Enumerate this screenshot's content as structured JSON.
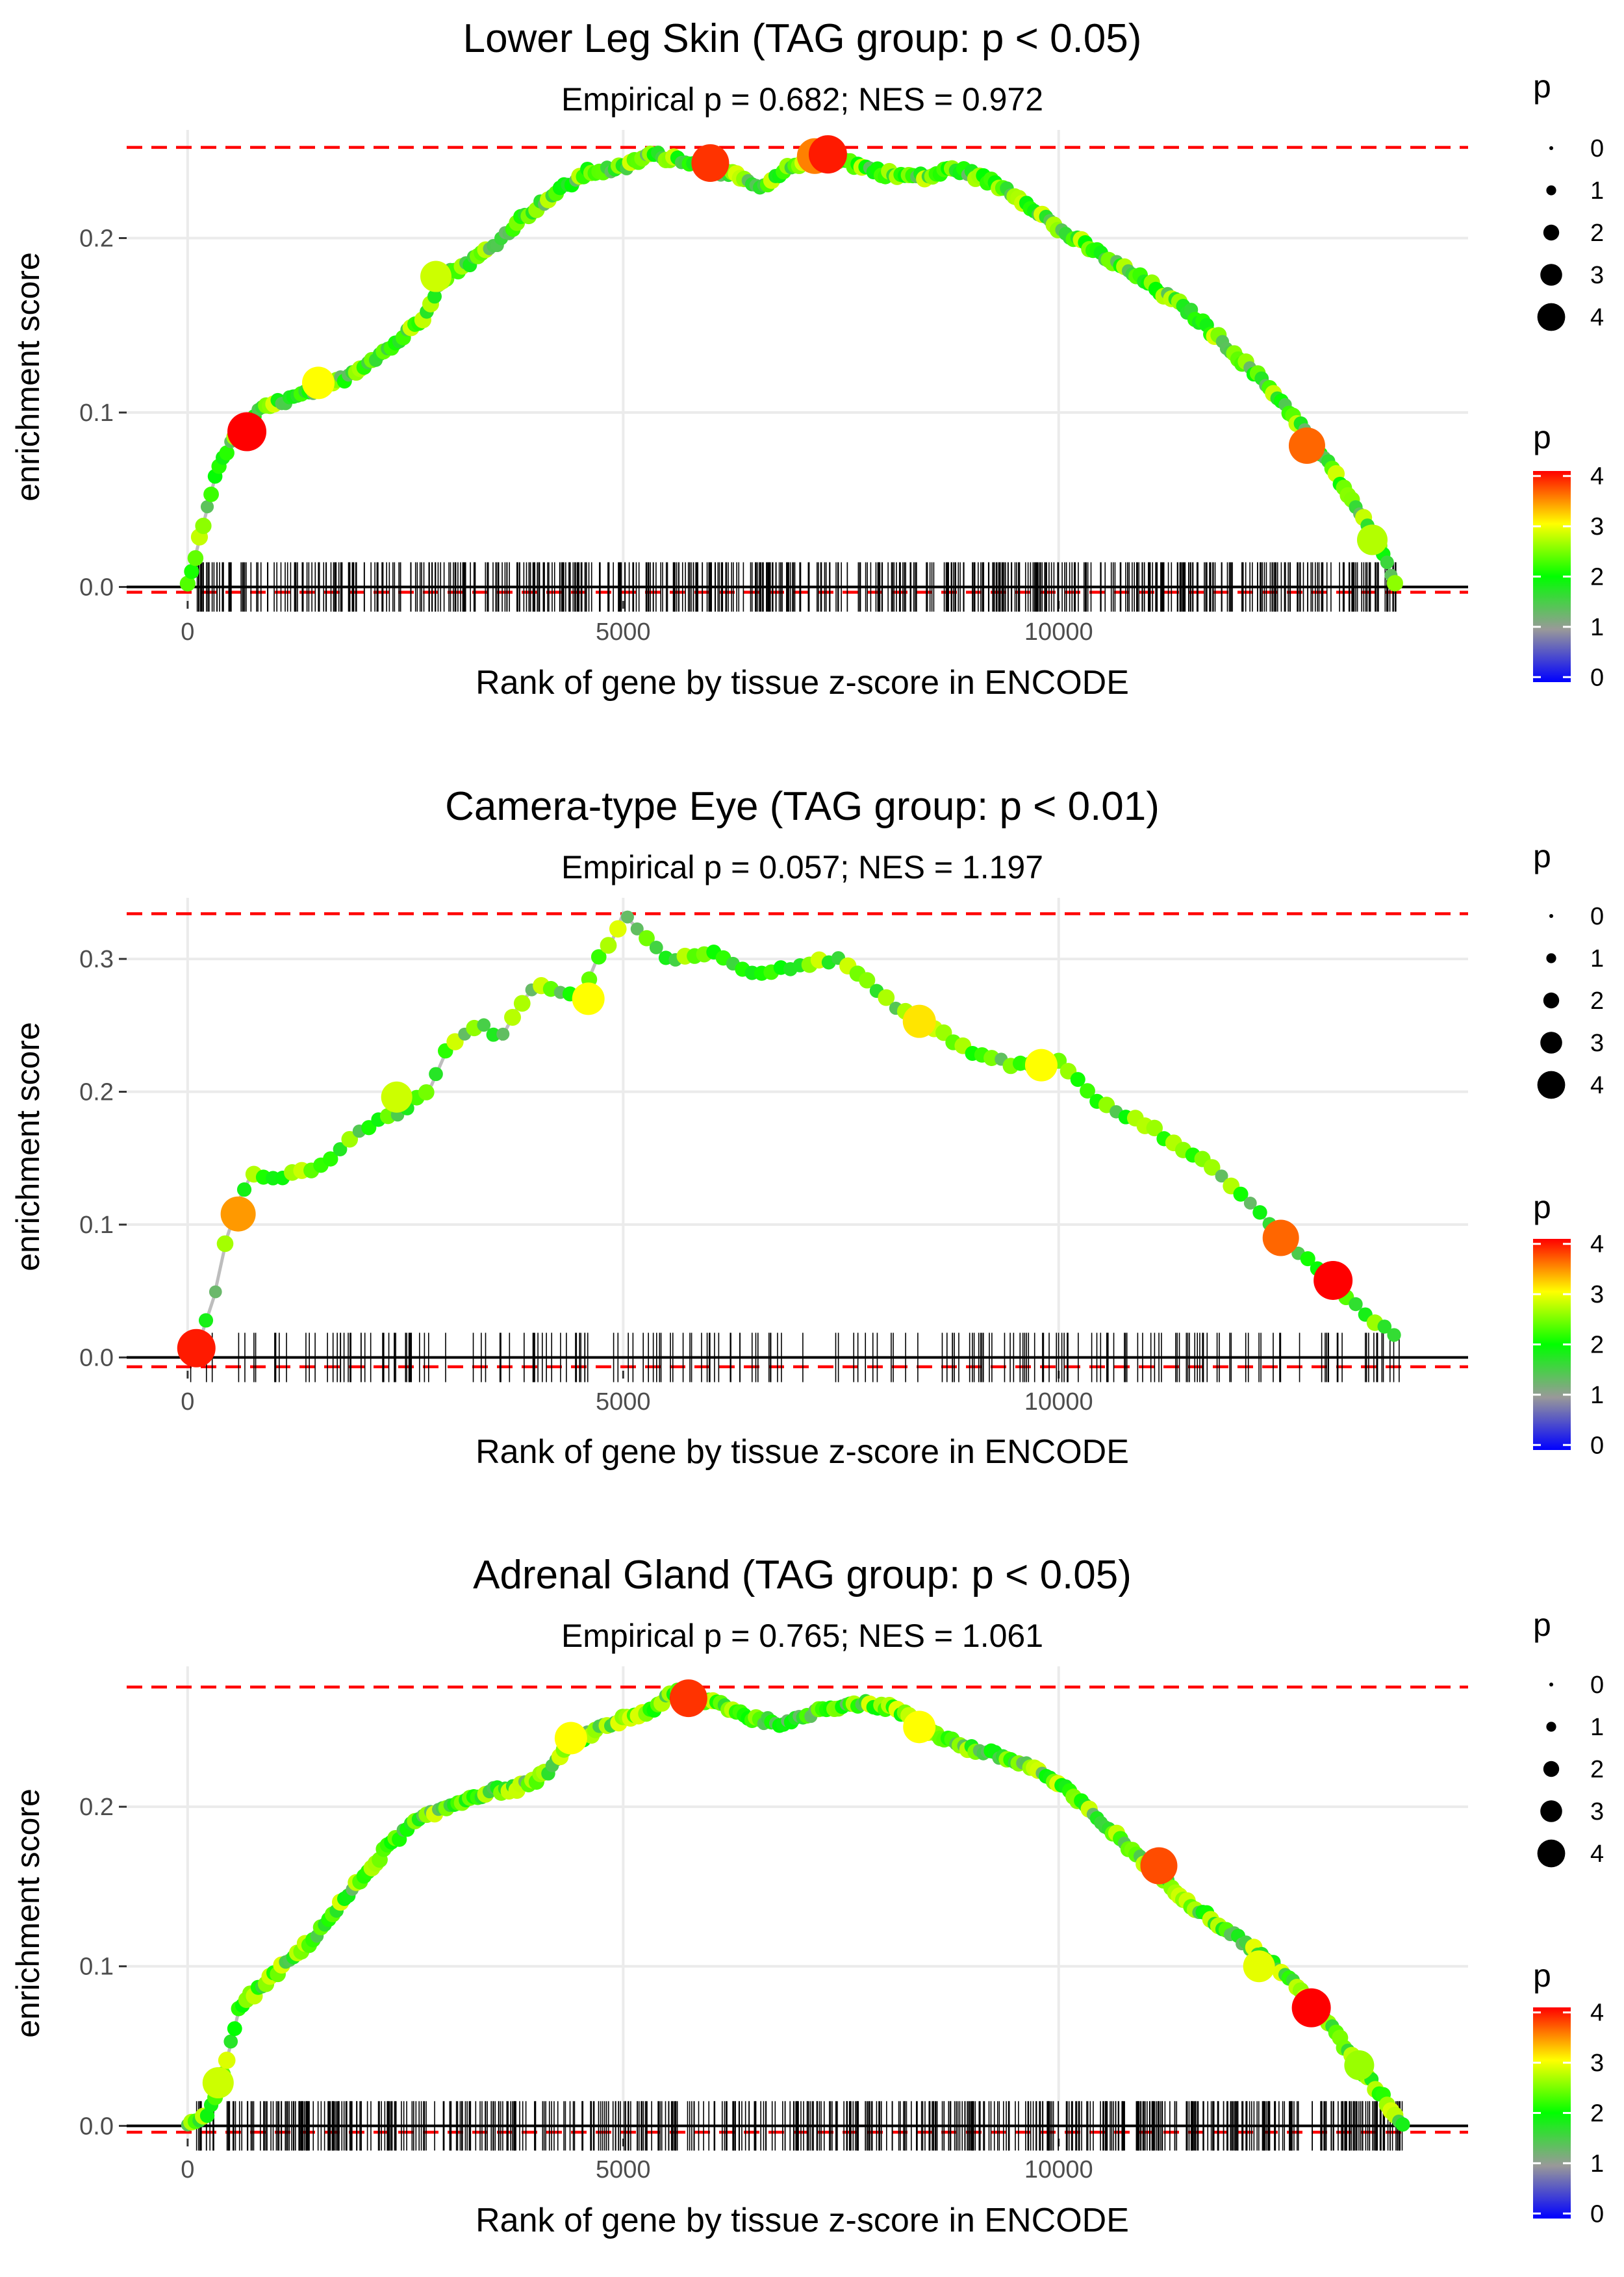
{
  "chart_data": [
    {
      "type": "line",
      "title": "Lower Leg Skin (TAG group: p < 0.05)",
      "subtitle": "Empirical p = 0.682; NES = 0.972",
      "xlabel": "Rank of gene by tissue z-score in ENCODE",
      "ylabel": "enrichment score",
      "xlim": [
        -700,
        14700
      ],
      "ylim": [
        -0.008,
        0.262
      ],
      "x_ticks": [
        0,
        5000,
        10000
      ],
      "x_tick_labels": [
        "0",
        "5000",
        "10000"
      ],
      "y_ticks": [
        0.0,
        0.1,
        0.2
      ],
      "y_tick_labels": [
        "0.0",
        "0.1",
        "0.2"
      ],
      "hlines": {
        "max_es": 0.252,
        "min_es": -0.003,
        "zero": 0.0
      },
      "rug_density": "dense",
      "rug_range": [
        50,
        13900
      ],
      "es_curve": {
        "x": [
          0,
          150,
          350,
          600,
          800,
          1000,
          1200,
          1500,
          1800,
          2100,
          2400,
          2700,
          2850,
          3000,
          3200,
          3500,
          3800,
          4200,
          4600,
          5000,
          5300,
          5700,
          6000,
          6300,
          6600,
          6900,
          7200,
          7500,
          7800,
          8100,
          8500,
          8800,
          9100,
          9400,
          9700,
          10000,
          10500,
          11000,
          11500,
          12000,
          12500,
          12900,
          13300,
          13600,
          13900
        ],
        "y": [
          0.0,
          0.03,
          0.07,
          0.09,
          0.1,
          0.105,
          0.108,
          0.113,
          0.12,
          0.13,
          0.14,
          0.155,
          0.17,
          0.18,
          0.185,
          0.195,
          0.21,
          0.225,
          0.238,
          0.24,
          0.248,
          0.245,
          0.24,
          0.235,
          0.228,
          0.24,
          0.248,
          0.245,
          0.24,
          0.236,
          0.235,
          0.24,
          0.235,
          0.228,
          0.218,
          0.205,
          0.19,
          0.175,
          0.158,
          0.135,
          0.11,
          0.085,
          0.055,
          0.03,
          0.0
        ]
      },
      "highlight_points": [
        {
          "x": 680,
          "y": 0.089,
          "p": 4.0
        },
        {
          "x": 6000,
          "y": 0.243,
          "p": 3.8
        },
        {
          "x": 7200,
          "y": 0.247,
          "p": 3.5
        },
        {
          "x": 7350,
          "y": 0.248,
          "p": 3.9
        },
        {
          "x": 12850,
          "y": 0.081,
          "p": 3.6
        },
        {
          "x": 1500,
          "y": 0.117,
          "p": 3.0
        },
        {
          "x": 2850,
          "y": 0.178,
          "p": 2.8
        },
        {
          "x": 13600,
          "y": 0.027,
          "p": 2.7
        }
      ]
    },
    {
      "type": "line",
      "title": "Camera-type Eye (TAG group: p < 0.01)",
      "subtitle": "Empirical p = 0.057; NES = 1.197",
      "xlabel": "Rank of gene by tissue z-score in ENCODE",
      "ylabel": "enrichment score",
      "xlim": [
        -700,
        14700
      ],
      "ylim": [
        -0.01,
        0.346
      ],
      "x_ticks": [
        0,
        5000,
        10000
      ],
      "x_tick_labels": [
        "0",
        "5000",
        "10000"
      ],
      "y_ticks": [
        0.0,
        0.1,
        0.2,
        0.3
      ],
      "y_tick_labels": [
        "0.0",
        "0.1",
        "0.2",
        "0.3"
      ],
      "hlines": {
        "max_es": 0.334,
        "min_es": -0.007,
        "zero": 0.0
      },
      "rug_density": "sparse",
      "rug_range": [
        100,
        13900
      ],
      "es_curve": {
        "x": [
          100,
          300,
          450,
          600,
          750,
          1000,
          1300,
          1600,
          1900,
          2200,
          2500,
          2800,
          3000,
          3200,
          3400,
          3600,
          3800,
          4000,
          4300,
          4500,
          4700,
          4850,
          5000,
          5500,
          6000,
          6500,
          7000,
          7500,
          8000,
          8500,
          9000,
          9500,
          10000,
          10500,
          11000,
          11500,
          12000,
          12500,
          13000,
          13500,
          13850
        ],
        "y": [
          0.005,
          0.045,
          0.09,
          0.12,
          0.14,
          0.135,
          0.14,
          0.145,
          0.165,
          0.18,
          0.185,
          0.205,
          0.235,
          0.245,
          0.25,
          0.24,
          0.265,
          0.28,
          0.275,
          0.268,
          0.3,
          0.31,
          0.334,
          0.3,
          0.305,
          0.29,
          0.295,
          0.3,
          0.27,
          0.25,
          0.23,
          0.22,
          0.222,
          0.19,
          0.175,
          0.155,
          0.13,
          0.095,
          0.065,
          0.035,
          0.015
        ]
      },
      "highlight_points": [
        {
          "x": 100,
          "y": 0.007,
          "p": 3.9
        },
        {
          "x": 580,
          "y": 0.108,
          "p": 3.4
        },
        {
          "x": 12550,
          "y": 0.09,
          "p": 3.6
        },
        {
          "x": 13150,
          "y": 0.058,
          "p": 4.0
        },
        {
          "x": 4600,
          "y": 0.27,
          "p": 3.0
        },
        {
          "x": 9800,
          "y": 0.22,
          "p": 3.0
        },
        {
          "x": 2400,
          "y": 0.196,
          "p": 2.8
        },
        {
          "x": 8400,
          "y": 0.253,
          "p": 3.1
        }
      ]
    },
    {
      "type": "line",
      "title": "Adrenal Gland (TAG group: p < 0.05)",
      "subtitle": "Empirical p = 0.765; NES = 1.061",
      "xlabel": "Rank of gene by tissue z-score in ENCODE",
      "ylabel": "enrichment score",
      "xlim": [
        -700,
        14700
      ],
      "ylim": [
        -0.008,
        0.288
      ],
      "x_ticks": [
        0,
        5000,
        10000
      ],
      "x_tick_labels": [
        "0",
        "5000",
        "10000"
      ],
      "y_ticks": [
        0.0,
        0.1,
        0.2
      ],
      "y_tick_labels": [
        "0.0",
        "0.1",
        "0.2"
      ],
      "hlines": {
        "max_es": 0.275,
        "min_es": -0.004,
        "zero": 0.0
      },
      "rug_density": "dense",
      "rug_range": [
        100,
        13950
      ],
      "es_curve": {
        "x": [
          0,
          200,
          400,
          600,
          800,
          1100,
          1400,
          1700,
          2000,
          2300,
          2600,
          2900,
          3200,
          3500,
          3800,
          4100,
          4400,
          4700,
          5000,
          5300,
          5600,
          5800,
          6100,
          6500,
          6900,
          7300,
          7700,
          8100,
          8500,
          8900,
          9300,
          9700,
          10100,
          10500,
          11000,
          11500,
          12000,
          12500,
          13000,
          13400,
          13700,
          13950
        ],
        "y": [
          0.0,
          0.005,
          0.03,
          0.075,
          0.085,
          0.1,
          0.115,
          0.135,
          0.155,
          0.175,
          0.19,
          0.198,
          0.205,
          0.21,
          0.212,
          0.22,
          0.24,
          0.248,
          0.255,
          0.26,
          0.272,
          0.268,
          0.265,
          0.255,
          0.252,
          0.262,
          0.265,
          0.262,
          0.248,
          0.238,
          0.232,
          0.225,
          0.21,
          0.19,
          0.165,
          0.14,
          0.12,
          0.1,
          0.072,
          0.04,
          0.02,
          0.0
        ]
      },
      "highlight_points": [
        {
          "x": 5750,
          "y": 0.268,
          "p": 3.8
        },
        {
          "x": 11150,
          "y": 0.163,
          "p": 3.7
        },
        {
          "x": 12900,
          "y": 0.074,
          "p": 4.0
        },
        {
          "x": 4400,
          "y": 0.243,
          "p": 3.0
        },
        {
          "x": 8400,
          "y": 0.25,
          "p": 3.0
        },
        {
          "x": 12300,
          "y": 0.1,
          "p": 2.9
        },
        {
          "x": 350,
          "y": 0.027,
          "p": 2.8
        },
        {
          "x": 13450,
          "y": 0.038,
          "p": 2.6
        }
      ]
    }
  ],
  "legends": {
    "size_title": "p",
    "size_labels": [
      "0",
      "1",
      "2",
      "3",
      "4"
    ],
    "color_title": "p",
    "color_labels": [
      "4",
      "3",
      "2",
      "1",
      "0"
    ]
  },
  "colors": {
    "max_line": "#ff0000",
    "zero_line": "#000000",
    "es_line": "#bdbdbd",
    "grid": "#ebebeb",
    "gradient": [
      "#0000ff",
      "#999999",
      "#00ff00",
      "#ffff00",
      "#ff0000"
    ]
  }
}
